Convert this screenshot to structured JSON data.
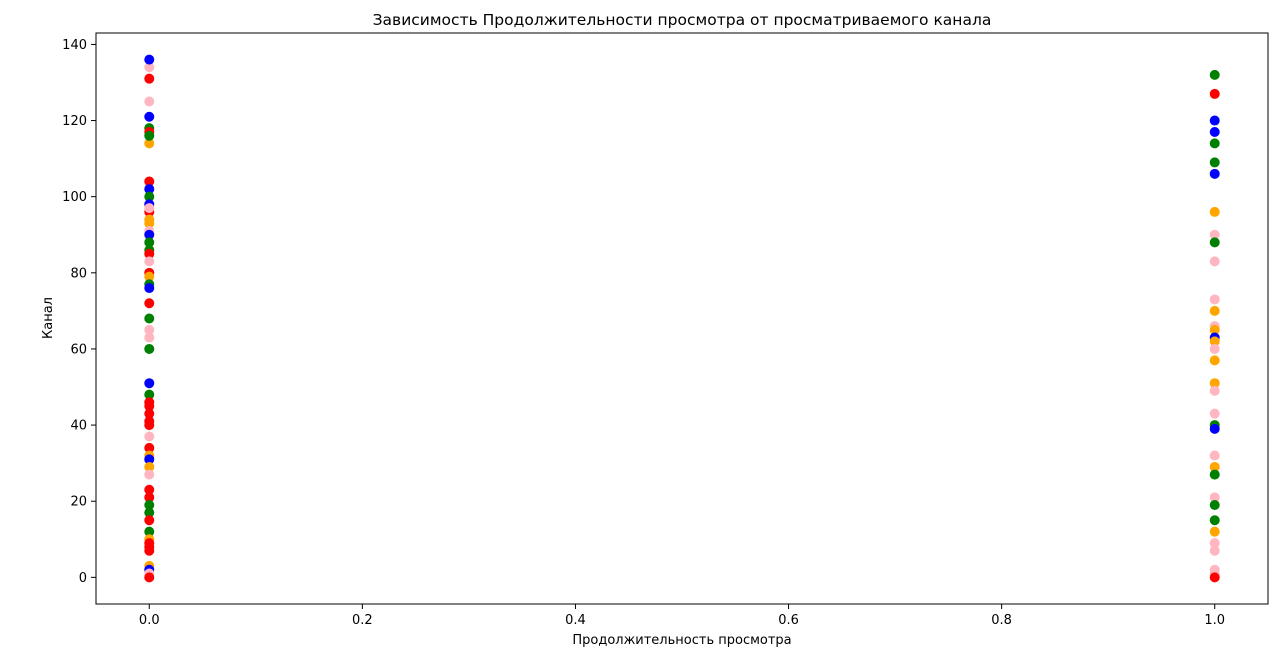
{
  "chart_data": {
    "type": "scatter",
    "title": "Зависимость Продолжительности просмотра от просматриваемого канала",
    "xlabel": "Продолжительность просмотра",
    "ylabel": "Канал",
    "xlim": [
      -0.05,
      1.05
    ],
    "ylim": [
      -7,
      143
    ],
    "xticks": [
      0.0,
      0.2,
      0.4,
      0.6,
      0.8,
      1.0
    ],
    "xtick_labels": [
      "0.0",
      "0.2",
      "0.4",
      "0.6",
      "0.8",
      "1.0"
    ],
    "yticks": [
      0,
      20,
      40,
      60,
      80,
      100,
      120,
      140
    ],
    "ytick_labels": [
      "0",
      "20",
      "40",
      "60",
      "80",
      "100",
      "120",
      "140"
    ],
    "grid": false,
    "legend": false,
    "colors": {
      "blue": "#0000ff",
      "red": "#ff0000",
      "green": "#008000",
      "orange": "#ffa500",
      "pink": "#ffb6c1"
    },
    "points": [
      {
        "x": 0,
        "y": 134,
        "c": "pink"
      },
      {
        "x": 0,
        "y": 136,
        "c": "blue"
      },
      {
        "x": 0,
        "y": 131,
        "c": "red"
      },
      {
        "x": 0,
        "y": 125,
        "c": "pink"
      },
      {
        "x": 0,
        "y": 121,
        "c": "blue"
      },
      {
        "x": 0,
        "y": 118,
        "c": "green"
      },
      {
        "x": 0,
        "y": 117,
        "c": "red"
      },
      {
        "x": 0,
        "y": 114,
        "c": "orange"
      },
      {
        "x": 0,
        "y": 116,
        "c": "green"
      },
      {
        "x": 0,
        "y": 104,
        "c": "red"
      },
      {
        "x": 0,
        "y": 102,
        "c": "blue"
      },
      {
        "x": 0,
        "y": 100,
        "c": "green"
      },
      {
        "x": 0,
        "y": 98,
        "c": "blue"
      },
      {
        "x": 0,
        "y": 96,
        "c": "red"
      },
      {
        "x": 0,
        "y": 94,
        "c": "orange"
      },
      {
        "x": 0,
        "y": 93,
        "c": "orange"
      },
      {
        "x": 0,
        "y": 97,
        "c": "pink"
      },
      {
        "x": 0,
        "y": 91,
        "c": "pink"
      },
      {
        "x": 0,
        "y": 90,
        "c": "blue"
      },
      {
        "x": 0,
        "y": 88,
        "c": "green"
      },
      {
        "x": 0,
        "y": 86,
        "c": "green"
      },
      {
        "x": 0,
        "y": 85,
        "c": "red"
      },
      {
        "x": 0,
        "y": 83,
        "c": "pink"
      },
      {
        "x": 0,
        "y": 80,
        "c": "red"
      },
      {
        "x": 0,
        "y": 79,
        "c": "orange"
      },
      {
        "x": 0,
        "y": 77,
        "c": "green"
      },
      {
        "x": 0,
        "y": 76,
        "c": "blue"
      },
      {
        "x": 0,
        "y": 72,
        "c": "red"
      },
      {
        "x": 0,
        "y": 68,
        "c": "green"
      },
      {
        "x": 0,
        "y": 65,
        "c": "pink"
      },
      {
        "x": 0,
        "y": 63,
        "c": "pink"
      },
      {
        "x": 0,
        "y": 60,
        "c": "green"
      },
      {
        "x": 0,
        "y": 51,
        "c": "blue"
      },
      {
        "x": 0,
        "y": 48,
        "c": "green"
      },
      {
        "x": 0,
        "y": 46,
        "c": "red"
      },
      {
        "x": 0,
        "y": 45,
        "c": "red"
      },
      {
        "x": 0,
        "y": 43,
        "c": "red"
      },
      {
        "x": 0,
        "y": 41,
        "c": "red"
      },
      {
        "x": 0,
        "y": 40,
        "c": "red"
      },
      {
        "x": 0,
        "y": 37,
        "c": "pink"
      },
      {
        "x": 0,
        "y": 34,
        "c": "red"
      },
      {
        "x": 0,
        "y": 32,
        "c": "orange"
      },
      {
        "x": 0,
        "y": 31,
        "c": "blue"
      },
      {
        "x": 0,
        "y": 29,
        "c": "orange"
      },
      {
        "x": 0,
        "y": 27,
        "c": "pink"
      },
      {
        "x": 0,
        "y": 23,
        "c": "red"
      },
      {
        "x": 0,
        "y": 21,
        "c": "red"
      },
      {
        "x": 0,
        "y": 19,
        "c": "green"
      },
      {
        "x": 0,
        "y": 17,
        "c": "green"
      },
      {
        "x": 0,
        "y": 15,
        "c": "red"
      },
      {
        "x": 0,
        "y": 12,
        "c": "green"
      },
      {
        "x": 0,
        "y": 10,
        "c": "orange"
      },
      {
        "x": 0,
        "y": 9,
        "c": "red"
      },
      {
        "x": 0,
        "y": 8,
        "c": "red"
      },
      {
        "x": 0,
        "y": 7,
        "c": "red"
      },
      {
        "x": 0,
        "y": 3,
        "c": "orange"
      },
      {
        "x": 0,
        "y": 2,
        "c": "blue"
      },
      {
        "x": 0,
        "y": 1,
        "c": "pink"
      },
      {
        "x": 0,
        "y": 0,
        "c": "red"
      },
      {
        "x": 1,
        "y": 132,
        "c": "green"
      },
      {
        "x": 1,
        "y": 127,
        "c": "red"
      },
      {
        "x": 1,
        "y": 120,
        "c": "blue"
      },
      {
        "x": 1,
        "y": 117,
        "c": "blue"
      },
      {
        "x": 1,
        "y": 114,
        "c": "green"
      },
      {
        "x": 1,
        "y": 109,
        "c": "green"
      },
      {
        "x": 1,
        "y": 106,
        "c": "blue"
      },
      {
        "x": 1,
        "y": 96,
        "c": "orange"
      },
      {
        "x": 1,
        "y": 90,
        "c": "pink"
      },
      {
        "x": 1,
        "y": 88,
        "c": "green"
      },
      {
        "x": 1,
        "y": 83,
        "c": "pink"
      },
      {
        "x": 1,
        "y": 73,
        "c": "pink"
      },
      {
        "x": 1,
        "y": 70,
        "c": "orange"
      },
      {
        "x": 1,
        "y": 66,
        "c": "pink"
      },
      {
        "x": 1,
        "y": 65,
        "c": "orange"
      },
      {
        "x": 1,
        "y": 63,
        "c": "blue"
      },
      {
        "x": 1,
        "y": 62,
        "c": "orange"
      },
      {
        "x": 1,
        "y": 60,
        "c": "pink"
      },
      {
        "x": 1,
        "y": 57,
        "c": "orange"
      },
      {
        "x": 1,
        "y": 51,
        "c": "orange"
      },
      {
        "x": 1,
        "y": 49,
        "c": "pink"
      },
      {
        "x": 1,
        "y": 43,
        "c": "pink"
      },
      {
        "x": 1,
        "y": 40,
        "c": "green"
      },
      {
        "x": 1,
        "y": 39,
        "c": "blue"
      },
      {
        "x": 1,
        "y": 32,
        "c": "pink"
      },
      {
        "x": 1,
        "y": 29,
        "c": "orange"
      },
      {
        "x": 1,
        "y": 27,
        "c": "green"
      },
      {
        "x": 1,
        "y": 21,
        "c": "pink"
      },
      {
        "x": 1,
        "y": 19,
        "c": "green"
      },
      {
        "x": 1,
        "y": 15,
        "c": "green"
      },
      {
        "x": 1,
        "y": 12,
        "c": "orange"
      },
      {
        "x": 1,
        "y": 9,
        "c": "pink"
      },
      {
        "x": 1,
        "y": 7,
        "c": "pink"
      },
      {
        "x": 1,
        "y": 2,
        "c": "pink"
      },
      {
        "x": 1,
        "y": 1,
        "c": "pink"
      },
      {
        "x": 1,
        "y": 0,
        "c": "red"
      }
    ]
  }
}
